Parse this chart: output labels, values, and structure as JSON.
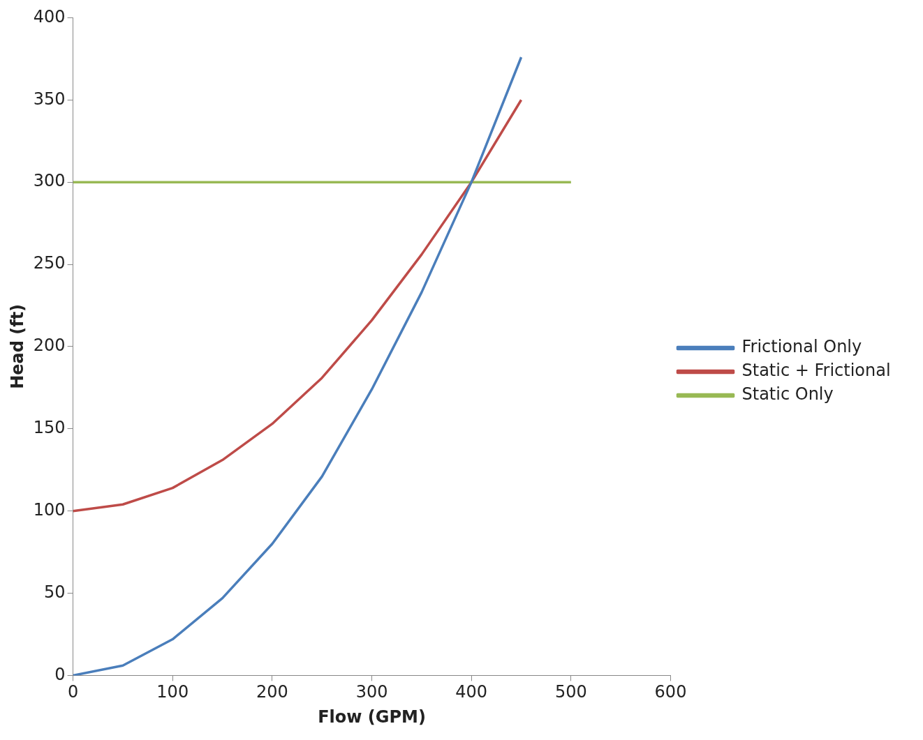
{
  "chart_data": {
    "type": "line",
    "xlabel": "Flow (GPM)",
    "ylabel": "Head (ft)",
    "x": [
      0,
      50,
      100,
      150,
      200,
      250,
      300,
      350,
      400,
      450
    ],
    "series": [
      {
        "name": "Frictional Only",
        "color": "#4a7ebb",
        "values": [
          0,
          6,
          22,
          47,
          80,
          121,
          174,
          233,
          300,
          376
        ]
      },
      {
        "name": "Static + Frictional",
        "color": "#be4b48",
        "values": [
          100,
          104,
          114,
          131,
          153,
          181,
          216,
          256,
          300,
          350
        ]
      },
      {
        "name": "Static Only",
        "color": "#98b954",
        "x": [
          0,
          500
        ],
        "values": [
          300,
          300
        ]
      }
    ],
    "xlim": [
      0,
      600
    ],
    "xticks": [
      0,
      100,
      200,
      300,
      400,
      500,
      600
    ],
    "ylim": [
      0,
      400
    ],
    "yticks": [
      0,
      50,
      100,
      150,
      200,
      250,
      300,
      350,
      400
    ],
    "grid": false,
    "legend": "right",
    "marker": "none",
    "line_style": "solid"
  }
}
